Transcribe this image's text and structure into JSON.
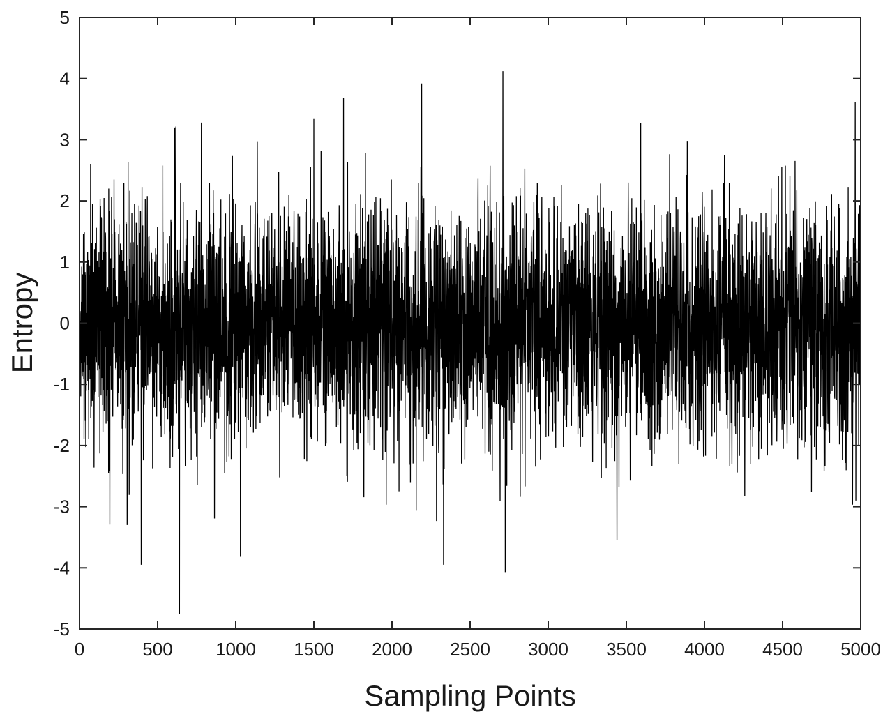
{
  "chart_data": {
    "type": "line",
    "title": "",
    "xlabel": "Sampling Points",
    "ylabel": "Entropy",
    "xlim": [
      0,
      5000
    ],
    "ylim": [
      -5,
      5
    ],
    "x_ticks": [
      0,
      500,
      1000,
      1500,
      2000,
      2500,
      3000,
      3500,
      4000,
      4500,
      5000
    ],
    "y_ticks": [
      -5,
      -4,
      -3,
      -2,
      -1,
      0,
      1,
      2,
      3,
      4,
      5
    ],
    "grid": false,
    "legend": "none",
    "line_color": "#000000",
    "series": [
      {
        "sampling": "noise signal sampled at points 0–5000, approximately zero-mean with standard deviation ~1",
        "values_summary": {
          "count": 5000,
          "mean": 0.0,
          "std": 1.0
        },
        "notable_points": [
          {
            "x": 640,
            "y": -4.75
          },
          {
            "x": 395,
            "y": -3.95
          },
          {
            "x": 1030,
            "y": -3.82
          },
          {
            "x": 2330,
            "y": -3.95
          },
          {
            "x": 2725,
            "y": -4.08
          },
          {
            "x": 3440,
            "y": -3.55
          },
          {
            "x": 2710,
            "y": 4.12
          },
          {
            "x": 2190,
            "y": 3.92
          },
          {
            "x": 4965,
            "y": 3.62
          },
          {
            "x": 1690,
            "y": 3.68
          },
          {
            "x": 1500,
            "y": 3.35
          },
          {
            "x": 610,
            "y": 3.2
          },
          {
            "x": 780,
            "y": 3.28
          },
          {
            "x": 3890,
            "y": 2.98
          }
        ]
      }
    ]
  }
}
